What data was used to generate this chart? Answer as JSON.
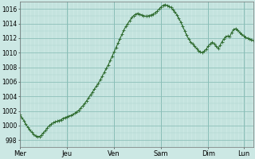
{
  "background_color": "#cce8e4",
  "plot_bg_color": "#cce8e4",
  "line_color": "#2d6a2d",
  "marker": "+",
  "marker_size": 2.5,
  "line_width": 0.8,
  "marker_edge_width": 0.6,
  "ylim": [
    997,
    1017
  ],
  "yticks": [
    998,
    1000,
    1002,
    1004,
    1006,
    1008,
    1010,
    1012,
    1014,
    1016
  ],
  "ylabel_fontsize": 5.5,
  "xlabel_fontsize": 6.0,
  "grid_minor_color": "#aed4ce",
  "grid_major_color": "#88bdb6",
  "day_labels": [
    "Mer",
    "Jeu",
    "Ven",
    "Sam",
    "Dim",
    "Lun"
  ],
  "day_positions": [
    0,
    24,
    48,
    72,
    96,
    114
  ],
  "xlim_max": 119,
  "pressure_values": [
    1001.5,
    1001.1,
    1000.7,
    1000.2,
    999.8,
    999.4,
    999.1,
    998.8,
    998.6,
    998.5,
    998.5,
    998.7,
    999.0,
    999.3,
    999.7,
    1000.0,
    1000.2,
    1000.4,
    1000.5,
    1000.6,
    1000.7,
    1000.8,
    1001.0,
    1001.1,
    1001.2,
    1001.3,
    1001.4,
    1001.5,
    1001.7,
    1001.9,
    1002.1,
    1002.4,
    1002.7,
    1003.0,
    1003.4,
    1003.8,
    1004.2,
    1004.6,
    1005.0,
    1005.4,
    1005.8,
    1006.3,
    1006.8,
    1007.3,
    1007.8,
    1008.3,
    1008.9,
    1009.5,
    1010.1,
    1010.7,
    1011.3,
    1011.9,
    1012.5,
    1013.1,
    1013.6,
    1014.0,
    1014.4,
    1014.8,
    1015.1,
    1015.3,
    1015.4,
    1015.3,
    1015.2,
    1015.1,
    1015.0,
    1015.0,
    1015.1,
    1015.2,
    1015.3,
    1015.5,
    1015.7,
    1016.0,
    1016.3,
    1016.5,
    1016.6,
    1016.5,
    1016.4,
    1016.2,
    1015.9,
    1015.6,
    1015.2,
    1014.7,
    1014.2,
    1013.6,
    1013.0,
    1012.4,
    1011.9,
    1011.5,
    1011.2,
    1010.9,
    1010.6,
    1010.3,
    1010.1,
    1010.0,
    1010.2,
    1010.5,
    1010.9,
    1011.2,
    1011.4,
    1011.2,
    1010.9,
    1010.6,
    1011.0,
    1011.5,
    1011.9,
    1012.2,
    1012.3,
    1012.2,
    1012.8,
    1013.2,
    1013.3,
    1013.1,
    1012.8,
    1012.5,
    1012.3,
    1012.1,
    1012.0,
    1011.9,
    1011.8,
    1011.7
  ]
}
